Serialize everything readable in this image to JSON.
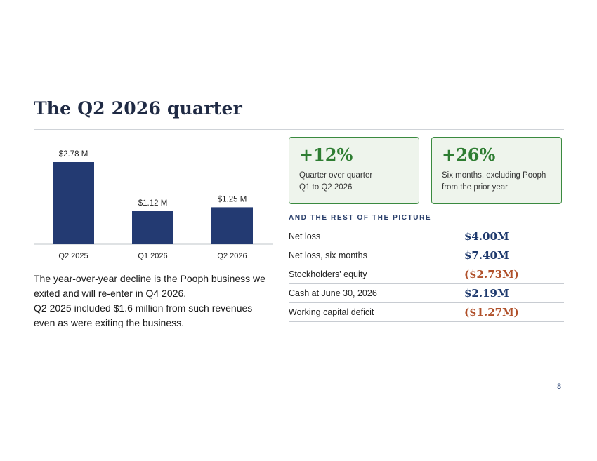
{
  "slide": {
    "title": "The Q2 2026 quarter",
    "page_number": "8"
  },
  "colors": {
    "bar": "#233a72",
    "accent_green": "#2e7d32",
    "value_blue": "#1f3a6e",
    "value_negative": "#b0502a"
  },
  "chart_data": {
    "type": "bar",
    "categories": [
      "Q2 2025",
      "Q1 2026",
      "Q2 2026"
    ],
    "values": [
      2.78,
      1.12,
      1.25
    ],
    "data_labels": [
      "$2.78 M",
      "$1.12 M",
      "$1.25 M"
    ],
    "title": "",
    "xlabel": "",
    "ylabel": "",
    "ylim": [
      0,
      2.78
    ],
    "grid": false,
    "legend": "none"
  },
  "narrative": {
    "line1": "The year-over-year decline is the Pooph business we exited and will re-enter in Q4 2026.",
    "line2": "Q2 2025 included $1.6 million from such revenues even as were exiting the business."
  },
  "cards": [
    {
      "value": "+12%",
      "caption": "Quarter over quarter\n Q1 to Q2 2026"
    },
    {
      "value": "+26%",
      "caption": "Six months, excluding Pooph\nfrom the prior year"
    }
  ],
  "metrics_heading": "AND THE REST OF THE PICTURE",
  "metrics": [
    {
      "label": "Net loss",
      "value": "$4.00M"
    },
    {
      "label": "Net loss, six months",
      "value": "$7.40M"
    },
    {
      "label": "Stockholders' equity",
      "value": "($2.73M)"
    },
    {
      "label": "Cash at June 30, 2026",
      "value": "$2.19M"
    },
    {
      "label": "Working capital deficit",
      "value": "($1.27M)"
    }
  ]
}
